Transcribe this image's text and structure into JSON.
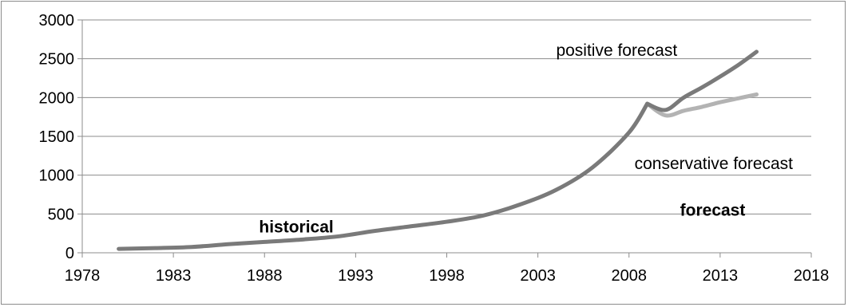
{
  "chart_data": {
    "type": "line",
    "title": "",
    "xlabel": "",
    "ylabel": "",
    "xlim": [
      1978,
      2018
    ],
    "ylim": [
      0,
      3000
    ],
    "x_ticks": [
      "1978",
      "1983",
      "1988",
      "1993",
      "1998",
      "2003",
      "2008",
      "2013",
      "2018"
    ],
    "y_ticks": [
      "0",
      "500",
      "1000",
      "1500",
      "2000",
      "2500",
      "3000"
    ],
    "grid": "horizontal",
    "legend": "none",
    "colors": {
      "historical": "#7a7a7a",
      "positive": "#7a7a7a",
      "conservative": "#b3b3b3",
      "grid": "#8c8c8c",
      "axis": "#8c8c8c"
    },
    "series": [
      {
        "key": "historical",
        "x": [
          1980,
          1982,
          1984,
          1986,
          1988,
          1990,
          1992,
          1994,
          1996,
          1998,
          2000,
          2002,
          2004,
          2006,
          2008,
          2009
        ],
        "y": [
          50,
          60,
          75,
          110,
          140,
          170,
          210,
          280,
          340,
          400,
          480,
          620,
          810,
          1100,
          1550,
          1920
        ]
      },
      {
        "key": "conservative",
        "x": [
          2009,
          2010,
          2011,
          2012,
          2013,
          2014,
          2015
        ],
        "y": [
          1920,
          1770,
          1830,
          1880,
          1940,
          1990,
          2040
        ]
      },
      {
        "key": "positive",
        "x": [
          2009,
          2010,
          2011,
          2012,
          2013,
          2014,
          2015
        ],
        "y": [
          1920,
          1840,
          2000,
          2130,
          2270,
          2420,
          2590
        ]
      }
    ],
    "annotations": [
      {
        "key": "positive",
        "text": "positive forecast",
        "x": 2004,
        "y": 2540,
        "bold": false
      },
      {
        "key": "conservative",
        "text": "conservative forecast",
        "x": 2008.3,
        "y": 1080,
        "bold": false
      },
      {
        "key": "forecast",
        "text": "forecast",
        "x": 2010.8,
        "y": 480,
        "bold": true
      },
      {
        "key": "historical",
        "text": "historical",
        "x": 1987.7,
        "y": 260,
        "bold": true
      }
    ]
  }
}
